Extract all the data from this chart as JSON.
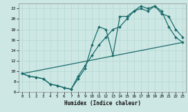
{
  "xlabel": "Humidex (Indice chaleur)",
  "xlim": [
    -0.5,
    23.5
  ],
  "ylim": [
    6,
    23
  ],
  "yticks": [
    6,
    8,
    10,
    12,
    14,
    16,
    18,
    20,
    22
  ],
  "xticks": [
    0,
    1,
    2,
    3,
    4,
    5,
    6,
    7,
    8,
    9,
    10,
    11,
    12,
    13,
    14,
    15,
    16,
    17,
    18,
    19,
    20,
    21,
    22,
    23
  ],
  "bg_color": "#cde8e4",
  "grid_color": "#b8d8d4",
  "line_color": "#1a6b6b",
  "line1_x": [
    0,
    1,
    2,
    3,
    4,
    5,
    6,
    7,
    8,
    9,
    10,
    11,
    12,
    13,
    14,
    15,
    16,
    17,
    18,
    19,
    20,
    21,
    22,
    23
  ],
  "line1_y": [
    9.5,
    9.0,
    8.8,
    8.5,
    7.5,
    7.2,
    6.8,
    6.5,
    8.5,
    10.5,
    15.0,
    18.5,
    18.0,
    13.0,
    20.5,
    20.5,
    21.5,
    22.5,
    22.0,
    22.5,
    21.0,
    20.5,
    18.0,
    16.5
  ],
  "line2_x": [
    0,
    1,
    2,
    3,
    4,
    5,
    6,
    7,
    8,
    9,
    10,
    11,
    12,
    13,
    14,
    15,
    16,
    17,
    18,
    19,
    20,
    21,
    22,
    23
  ],
  "line2_y": [
    9.5,
    9.0,
    8.8,
    8.5,
    7.5,
    7.2,
    6.8,
    6.5,
    9.0,
    11.0,
    13.0,
    15.0,
    16.5,
    18.0,
    18.5,
    20.0,
    21.5,
    22.0,
    21.5,
    22.5,
    21.5,
    18.5,
    16.5,
    15.5
  ],
  "line3_x": [
    0,
    23
  ],
  "line3_y": [
    9.5,
    15.5
  ],
  "marker": "D",
  "marker_size": 2.0,
  "line_width": 0.9
}
